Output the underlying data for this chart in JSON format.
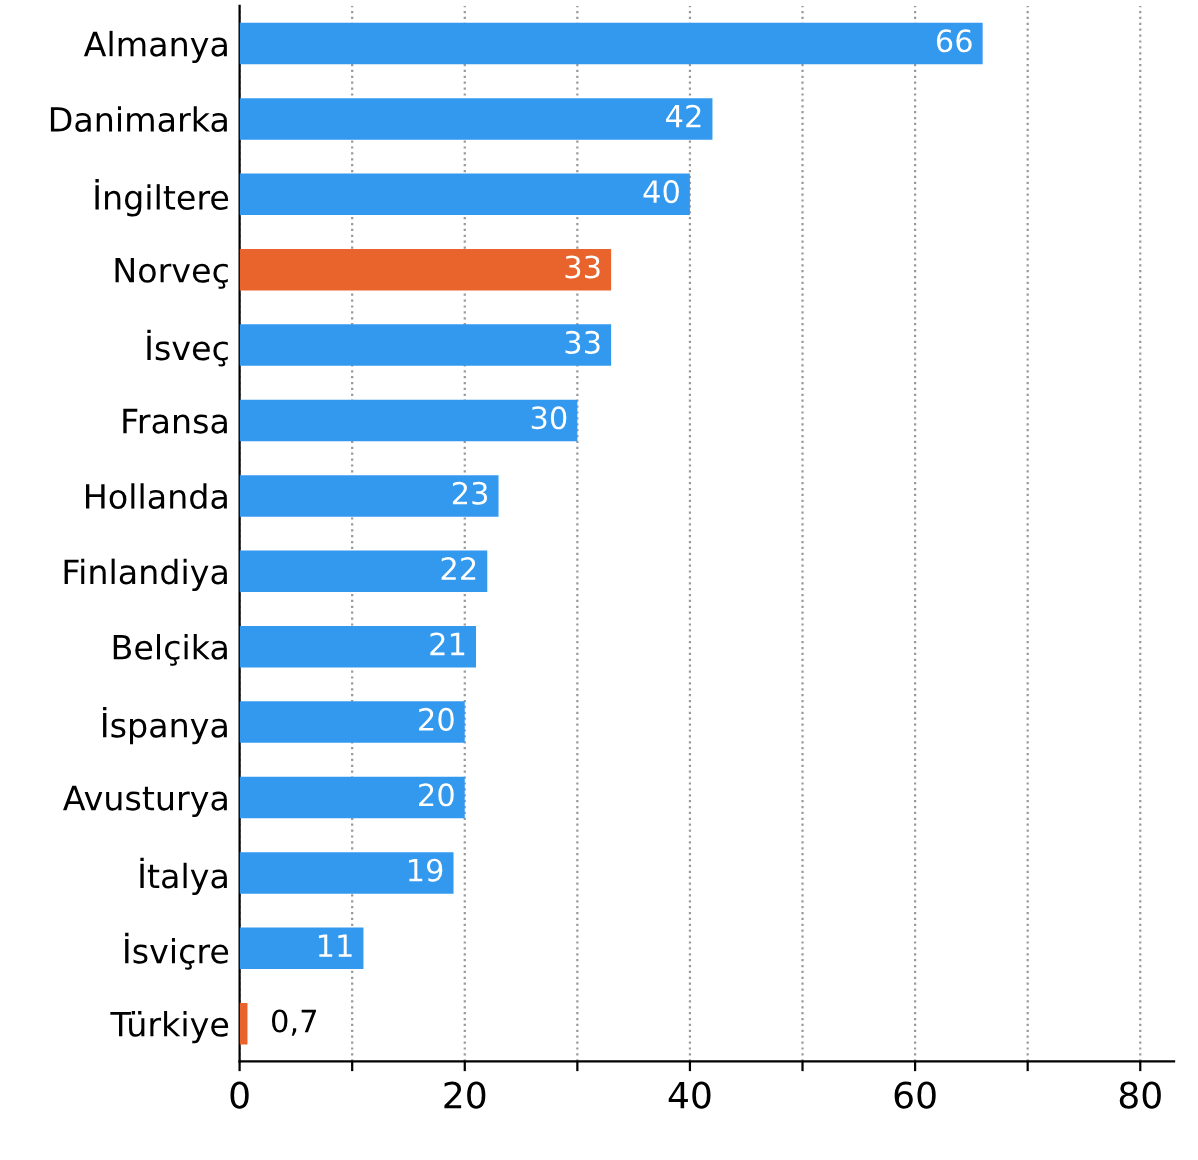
{
  "chart_data": {
    "type": "bar",
    "orientation": "horizontal",
    "categories": [
      "Almanya",
      "Danimarka",
      "İngiltere",
      "Norveç",
      "İsveç",
      "Fransa",
      "Hollanda",
      "Finlandiya",
      "Belçika",
      "İspanya",
      "Avusturya",
      "İtalya",
      "İsviçre",
      "Türkiye"
    ],
    "values": [
      66,
      42,
      40,
      33,
      33,
      30,
      23,
      22,
      21,
      20,
      20,
      19,
      11,
      0.7
    ],
    "colors": [
      "#3399ee",
      "#3399ee",
      "#3399ee",
      "#e8642c",
      "#3399ee",
      "#3399ee",
      "#3399ee",
      "#3399ee",
      "#3399ee",
      "#3399ee",
      "#3399ee",
      "#3399ee",
      "#3399ee",
      "#e8642c"
    ],
    "value_labels": [
      "66",
      "42",
      "40",
      "33",
      "33",
      "30",
      "23",
      "22",
      "21",
      "20",
      "20",
      "19",
      "11",
      "0,7"
    ],
    "xlim": [
      0,
      83
    ],
    "xticks": [
      0,
      {
        "value": 10,
        "label": null
      },
      20,
      {
        "value": 30,
        "label": null
      },
      40,
      {
        "value": 50,
        "label": null
      },
      60,
      {
        "value": 70,
        "label": null
      },
      80
    ],
    "grid": "x",
    "legend": false
  }
}
